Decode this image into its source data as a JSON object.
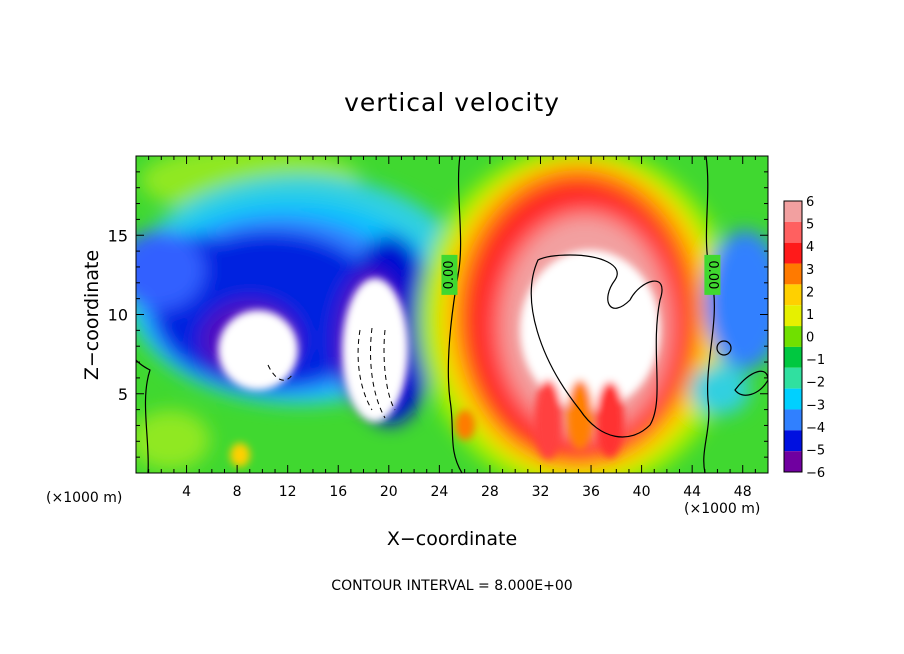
{
  "chart_data": {
    "type": "heatmap",
    "title": "vertical velocity",
    "xlabel": "X−coordinate",
    "ylabel": "Z−coordinate",
    "x_unit_left": "(×1000 m)",
    "x_unit_right": "(×1000 m)",
    "xlim": [
      0,
      50
    ],
    "ylim": [
      0,
      20
    ],
    "x_ticks": [
      4,
      8,
      12,
      16,
      20,
      24,
      28,
      32,
      36,
      40,
      44,
      48
    ],
    "y_ticks": [
      5,
      10,
      15
    ],
    "colorbar": {
      "levels": [
        6,
        5,
        4,
        3,
        2,
        1,
        0,
        -1,
        -2,
        -3,
        -4,
        -5,
        -6
      ],
      "labels": [
        "6",
        "5",
        "4",
        "3",
        "2",
        "1",
        "0",
        "−1",
        "−2",
        "−3",
        "−4",
        "−5",
        "−6"
      ],
      "colors": [
        "#f2a0a0",
        "#ff6060",
        "#ff1a1a",
        "#ff7a00",
        "#ffd000",
        "#e6f000",
        "#70e000",
        "#00c840",
        "#30e0a0",
        "#00d0ff",
        "#3080ff",
        "#0010e0",
        "#7000a0"
      ]
    },
    "contour_labels": [
      {
        "text": "0.00",
        "x": 24.8,
        "y": 12.5,
        "rotation": -90
      },
      {
        "text": "0.00",
        "x": 45.6,
        "y": 12.5,
        "rotation": 90
      }
    ],
    "contour_interval": "CONTOUR INTERVAL = 8.000E+00",
    "regions": [
      {
        "kind": "updraft",
        "x": 35,
        "y": 9,
        "rx": 8.5,
        "ry": 8.5
      },
      {
        "kind": "downdraft",
        "x": 14,
        "y": 10,
        "rx": 10,
        "ry": 7
      }
    ]
  }
}
